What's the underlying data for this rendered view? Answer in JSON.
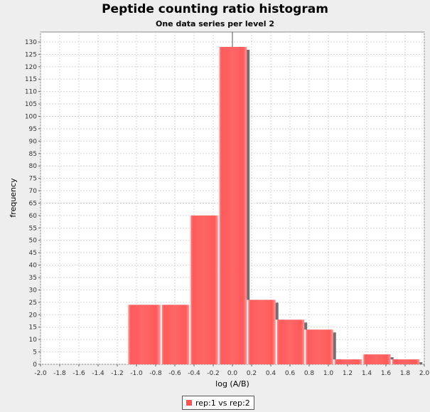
{
  "chart_data": {
    "type": "bar",
    "title": "Peptide counting ratio histogram",
    "subtitle": "One data series per level 2",
    "xlabel": "log (A/B)",
    "ylabel": "frequency",
    "xlim": [
      -2.0,
      2.0
    ],
    "ylim": [
      0,
      134
    ],
    "x_ticks": [
      "-2.0",
      "-1.8",
      "-1.6",
      "-1.4",
      "-1.2",
      "-1.0",
      "-0.8",
      "-0.6",
      "-0.4",
      "-0.2",
      "0.0",
      "0.2",
      "0.4",
      "0.6",
      "0.8",
      "1.0",
      "1.2",
      "1.4",
      "1.6",
      "1.8",
      "2.0"
    ],
    "y_ticks": [
      0,
      5,
      10,
      15,
      20,
      25,
      30,
      35,
      40,
      45,
      50,
      55,
      60,
      65,
      70,
      75,
      80,
      85,
      90,
      95,
      100,
      105,
      110,
      115,
      120,
      125,
      130
    ],
    "grid": true,
    "legend_position": "bottom",
    "bar_color": "#ff5555",
    "series": [
      {
        "name": "rep:1 vs rep:2",
        "bins": [
          {
            "x0": -1.1,
            "x1": -0.75,
            "value": 24
          },
          {
            "x0": -0.75,
            "x1": -0.45,
            "value": 24
          },
          {
            "x0": -0.45,
            "x1": -0.15,
            "value": 60
          },
          {
            "x0": -0.15,
            "x1": 0.15,
            "value": 128
          },
          {
            "x0": 0.15,
            "x1": 0.45,
            "value": 26
          },
          {
            "x0": 0.45,
            "x1": 0.75,
            "value": 18
          },
          {
            "x0": 0.75,
            "x1": 1.05,
            "value": 14
          },
          {
            "x0": 1.05,
            "x1": 1.35,
            "value": 2
          },
          {
            "x0": 1.35,
            "x1": 1.65,
            "value": 4
          },
          {
            "x0": 1.65,
            "x1": 1.95,
            "value": 2
          }
        ]
      }
    ]
  }
}
